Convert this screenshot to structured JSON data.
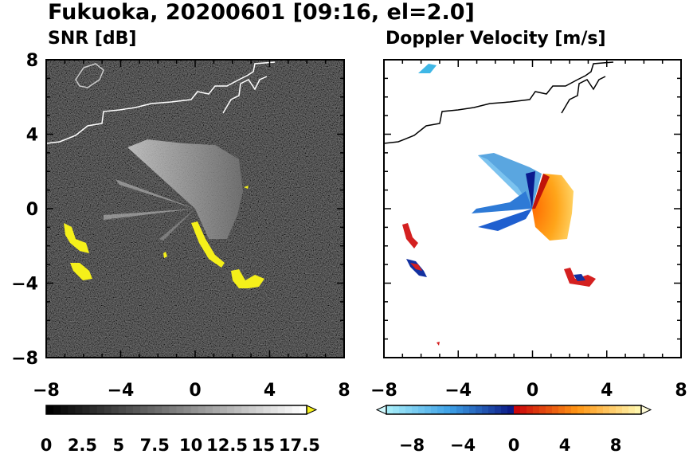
{
  "title": "Fukuoka, 20200601 [09:16, el=2.0]",
  "panels": [
    {
      "title": "SNR [dB]"
    },
    {
      "title": "Doppler Velocity [m/s]"
    }
  ],
  "colorbars": [
    {
      "labels": [
        "0",
        "2.5",
        "5",
        "7.5",
        "10",
        "12.5",
        "15",
        "17.5"
      ],
      "range": [
        0,
        18
      ],
      "extend": "max",
      "over_color": "#f5f01a"
    },
    {
      "labels": [
        "−8",
        "−4",
        "0",
        "4",
        "8"
      ],
      "range": [
        -10,
        10
      ],
      "extend": "both"
    }
  ],
  "chart_data": [
    {
      "type": "heatmap",
      "title": "SNR [dB]",
      "x": [
        -8,
        -4,
        0,
        4,
        8
      ],
      "y": [
        -8,
        -4,
        0,
        4,
        8
      ],
      "xlim": [
        -8,
        8
      ],
      "ylim": [
        -8,
        8
      ],
      "xticks": [
        "−8",
        "−4",
        "0",
        "4",
        "8"
      ],
      "yticks": [
        "−8",
        "−4",
        "0",
        "4",
        "8"
      ],
      "colormap": "gray",
      "value_range": [
        0,
        18
      ],
      "grid": false
    },
    {
      "type": "heatmap",
      "title": "Doppler Velocity [m/s]",
      "x": [
        -8,
        -4,
        0,
        4,
        8
      ],
      "y": [
        -8,
        -4,
        0,
        4,
        8
      ],
      "xlim": [
        -8,
        8
      ],
      "ylim": [
        -8,
        8
      ],
      "xticks": [
        "−8",
        "−4",
        "0",
        "4",
        "8"
      ],
      "colormap": "blue-white-red",
      "value_range": [
        -10,
        10
      ],
      "grid": false
    }
  ]
}
